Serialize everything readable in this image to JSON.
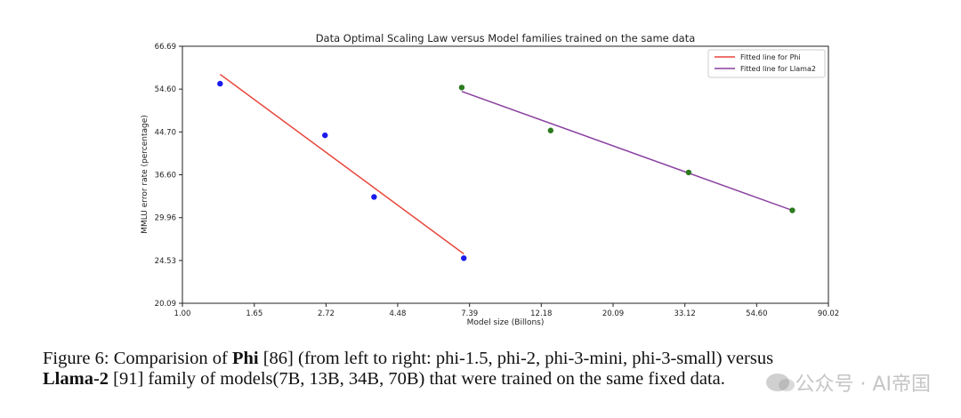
{
  "chart_data": {
    "type": "scatter",
    "title": "Data Optimal Scaling Law versus Model families trained on the same data",
    "xlabel": "Model size (Billons)",
    "ylabel": "MMLU error rate (percentage)",
    "x_scale": "log",
    "y_scale": "log",
    "xlim": [
      1.0,
      90.02
    ],
    "ylim": [
      20.09,
      66.69
    ],
    "x_ticks": [
      "1.00",
      "1.65",
      "2.72",
      "4.48",
      "7.39",
      "12.18",
      "20.09",
      "33.12",
      "54.60",
      "90.02"
    ],
    "y_ticks": [
      "20.09",
      "24.53",
      "29.96",
      "36.60",
      "44.70",
      "54.60",
      "66.69"
    ],
    "legend_position": "top-right",
    "grid": false,
    "series": [
      {
        "name": "Fitted line for Phi",
        "kind": "line",
        "color": "#e8473c",
        "x": [
          1.3,
          7.1
        ],
        "y": [
          58.5,
          25.3
        ]
      },
      {
        "name": "Fitted line for Llama2",
        "kind": "line",
        "color": "#8b3fa0",
        "x": [
          7.0,
          70.0
        ],
        "y": [
          54.0,
          31.0
        ]
      },
      {
        "kind": "scatter",
        "color": "#1a1aee",
        "x": [
          1.3,
          2.7,
          3.8,
          7.1
        ],
        "y": [
          56.0,
          44.0,
          33.0,
          24.8
        ]
      },
      {
        "kind": "scatter",
        "color": "#2d7a1f",
        "x": [
          7.0,
          13.0,
          34.0,
          70.0
        ],
        "y": [
          55.0,
          45.0,
          37.0,
          31.0
        ]
      }
    ]
  },
  "caption": {
    "prefix": "Figure 6: Comparision of ",
    "bold1": "Phi",
    "mid1": " [86] (from left to right: phi-1.5, phi-2, phi-3-mini, phi-3-small) versus",
    "bold2": "Llama-2",
    "mid2": " [91] family of models(7B, 13B, 34B, 70B) that were trained on the same fixed data."
  },
  "watermark": "公众号 · AI帝国"
}
